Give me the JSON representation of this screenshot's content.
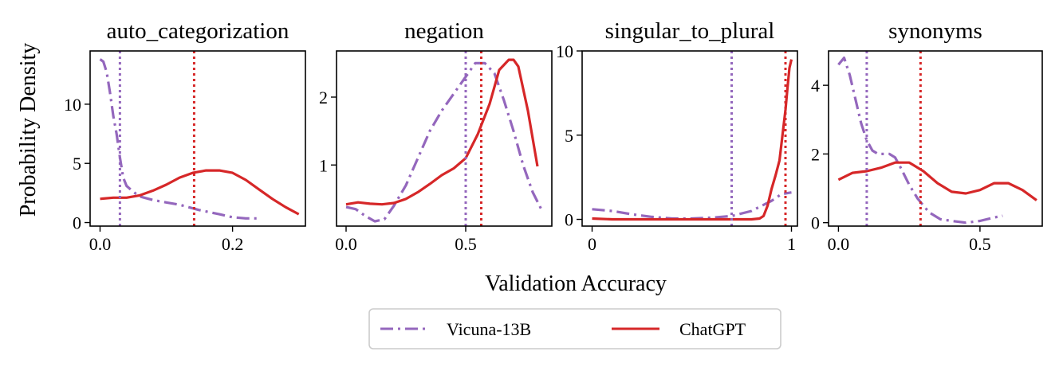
{
  "chart_data": {
    "type": "line",
    "xlabel": "Validation Accuracy",
    "ylabel": "Probability Density",
    "legend": {
      "placement": "bottom-center",
      "entries": [
        {
          "name": "Vicuna-13B",
          "color": "#9467bd",
          "dash": "dashdot"
        },
        {
          "name": "ChatGPT",
          "color": "#d62728",
          "dash": "solid"
        }
      ]
    },
    "panels": [
      {
        "title": "auto_categorization",
        "xlim": [
          -0.015,
          0.31
        ],
        "ylim": [
          -0.3,
          14.5
        ],
        "xticks": [
          {
            "v": 0.0,
            "label": "0.0"
          },
          {
            "v": 0.2,
            "label": "0.2"
          }
        ],
        "yticks": [
          {
            "v": 0,
            "label": "0"
          },
          {
            "v": 5,
            "label": "5"
          },
          {
            "v": 10,
            "label": "10"
          }
        ],
        "series": [
          {
            "name": "Vicuna-13B",
            "x": [
              0.0,
              0.005,
              0.01,
              0.015,
              0.02,
              0.025,
              0.03,
              0.035,
              0.04,
              0.05,
              0.06,
              0.08,
              0.1,
              0.12,
              0.15,
              0.18,
              0.2,
              0.22,
              0.24
            ],
            "y": [
              13.8,
              13.6,
              12.7,
              11.0,
              9.0,
              7.5,
              5.5,
              3.8,
              3.1,
              2.6,
              2.2,
              1.9,
              1.7,
              1.5,
              1.05,
              0.7,
              0.45,
              0.35,
              0.35
            ]
          },
          {
            "name": "ChatGPT",
            "x": [
              0.0,
              0.02,
              0.04,
              0.06,
              0.08,
              0.1,
              0.12,
              0.14,
              0.16,
              0.18,
              0.2,
              0.22,
              0.24,
              0.26,
              0.28,
              0.3
            ],
            "y": [
              2.0,
              2.1,
              2.1,
              2.3,
              2.7,
              3.2,
              3.8,
              4.2,
              4.4,
              4.4,
              4.2,
              3.6,
              2.8,
              2.0,
              1.3,
              0.7
            ]
          }
        ],
        "vlines": [
          {
            "name": "Vicuna-13B",
            "x": 0.03
          },
          {
            "name": "ChatGPT",
            "x": 0.142
          }
        ]
      },
      {
        "title": "negation",
        "xlim": [
          -0.04,
          0.86
        ],
        "ylim": [
          0.1,
          2.68
        ],
        "xticks": [
          {
            "v": 0.0,
            "label": "0.0"
          },
          {
            "v": 0.5,
            "label": "0.5"
          }
        ],
        "yticks": [
          {
            "v": 1,
            "label": "1"
          },
          {
            "v": 2,
            "label": "2"
          }
        ],
        "series": [
          {
            "name": "Vicuna-13B",
            "x": [
              0.0,
              0.04,
              0.08,
              0.12,
              0.16,
              0.2,
              0.25,
              0.3,
              0.35,
              0.4,
              0.45,
              0.5,
              0.54,
              0.58,
              0.62,
              0.66,
              0.7,
              0.74,
              0.78,
              0.82
            ],
            "y": [
              0.38,
              0.35,
              0.25,
              0.17,
              0.2,
              0.4,
              0.7,
              1.1,
              1.5,
              1.8,
              2.05,
              2.3,
              2.5,
              2.5,
              2.35,
              1.95,
              1.5,
              1.0,
              0.6,
              0.32
            ]
          },
          {
            "name": "ChatGPT",
            "x": [
              0.0,
              0.05,
              0.1,
              0.15,
              0.2,
              0.25,
              0.3,
              0.35,
              0.4,
              0.45,
              0.5,
              0.55,
              0.6,
              0.64,
              0.68,
              0.7,
              0.72,
              0.76,
              0.8
            ],
            "y": [
              0.42,
              0.45,
              0.43,
              0.42,
              0.44,
              0.5,
              0.6,
              0.72,
              0.85,
              0.95,
              1.1,
              1.45,
              1.9,
              2.4,
              2.55,
              2.55,
              2.45,
              1.8,
              0.98
            ]
          }
        ],
        "vlines": [
          {
            "name": "Vicuna-13B",
            "x": 0.5
          },
          {
            "name": "ChatGPT",
            "x": 0.565
          }
        ]
      },
      {
        "title": "singular_to_plural",
        "xlim": [
          -0.05,
          1.03
        ],
        "ylim": [
          -0.4,
          10.0
        ],
        "xticks": [
          {
            "v": 0,
            "label": "0"
          },
          {
            "v": 1,
            "label": "1"
          }
        ],
        "yticks": [
          {
            "v": 0,
            "label": "0"
          },
          {
            "v": 5,
            "label": "5"
          },
          {
            "v": 10,
            "label": "10"
          }
        ],
        "series": [
          {
            "name": "Vicuna-13B",
            "x": [
              0.0,
              0.1,
              0.2,
              0.3,
              0.4,
              0.5,
              0.6,
              0.7,
              0.8,
              0.85,
              0.9,
              0.95,
              1.0
            ],
            "y": [
              0.6,
              0.5,
              0.3,
              0.15,
              0.05,
              0.05,
              0.1,
              0.2,
              0.5,
              0.8,
              1.1,
              1.5,
              1.6
            ]
          },
          {
            "name": "ChatGPT",
            "x": [
              0.0,
              0.1,
              0.3,
              0.5,
              0.7,
              0.8,
              0.84,
              0.86,
              0.88,
              0.9,
              0.92,
              0.94,
              0.96,
              0.97,
              0.98,
              0.99,
              1.0
            ],
            "y": [
              0.05,
              0.0,
              0.0,
              0.0,
              0.0,
              0.0,
              0.05,
              0.2,
              0.8,
              1.8,
              2.6,
              3.5,
              5.5,
              6.5,
              7.8,
              9.0,
              9.5
            ]
          }
        ],
        "vlines": [
          {
            "name": "Vicuna-13B",
            "x": 0.7
          },
          {
            "name": "ChatGPT",
            "x": 0.97
          }
        ]
      },
      {
        "title": "synonyms",
        "xlim": [
          -0.035,
          0.72
        ],
        "ylim": [
          -0.1,
          5.0
        ],
        "xticks": [
          {
            "v": 0.0,
            "label": "0.0"
          },
          {
            "v": 0.5,
            "label": "0.5"
          }
        ],
        "yticks": [
          {
            "v": 0,
            "label": "0"
          },
          {
            "v": 2,
            "label": "2"
          },
          {
            "v": 4,
            "label": "4"
          }
        ],
        "series": [
          {
            "name": "Vicuna-13B",
            "x": [
              0.0,
              0.02,
              0.04,
              0.06,
              0.08,
              0.1,
              0.12,
              0.14,
              0.16,
              0.18,
              0.2,
              0.22,
              0.25,
              0.28,
              0.32,
              0.36,
              0.4,
              0.45,
              0.5,
              0.55,
              0.58
            ],
            "y": [
              4.6,
              4.8,
              4.3,
              3.6,
              2.9,
              2.4,
              2.1,
              2.0,
              2.0,
              2.0,
              1.9,
              1.6,
              1.1,
              0.7,
              0.3,
              0.1,
              0.05,
              0.0,
              0.05,
              0.15,
              0.2
            ]
          },
          {
            "name": "ChatGPT",
            "x": [
              0.0,
              0.05,
              0.1,
              0.15,
              0.2,
              0.25,
              0.3,
              0.35,
              0.4,
              0.45,
              0.5,
              0.55,
              0.6,
              0.65,
              0.7
            ],
            "y": [
              1.25,
              1.45,
              1.5,
              1.6,
              1.75,
              1.75,
              1.5,
              1.15,
              0.9,
              0.85,
              0.95,
              1.15,
              1.15,
              0.95,
              0.65
            ]
          }
        ],
        "vlines": [
          {
            "name": "Vicuna-13B",
            "x": 0.1
          },
          {
            "name": "ChatGPT",
            "x": 0.29
          }
        ]
      }
    ]
  }
}
